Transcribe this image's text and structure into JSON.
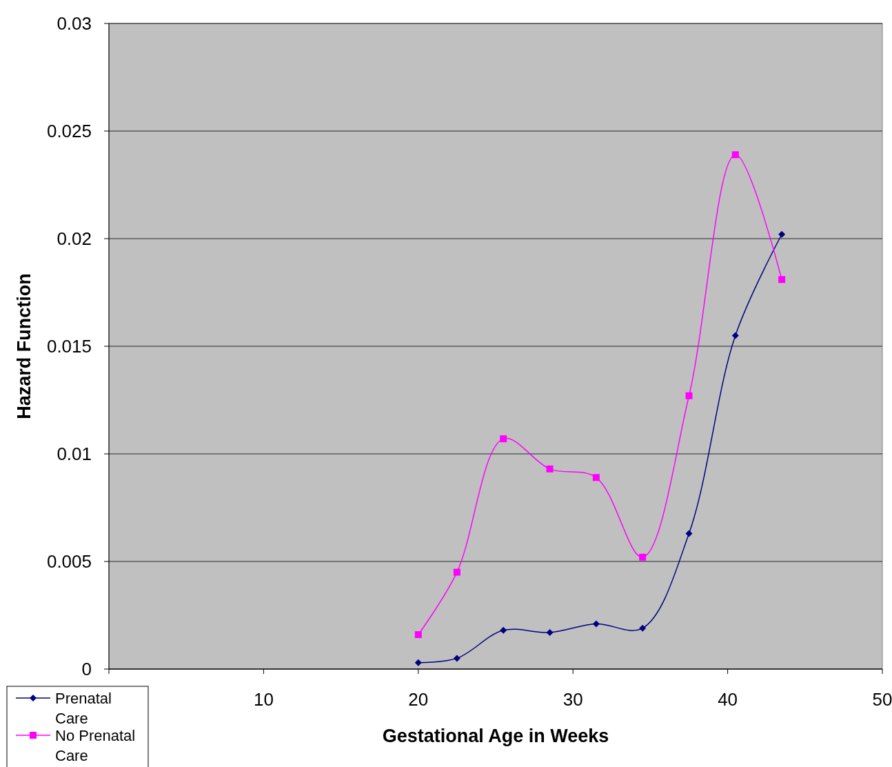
{
  "chart_data": {
    "type": "line",
    "xlabel": "Gestational Age in Weeks",
    "ylabel": "Hazard Function",
    "xlim": [
      0,
      50
    ],
    "xticks": [
      {
        "value": 0,
        "label": null
      },
      10,
      20,
      30,
      40,
      50
    ],
    "ylim": [
      0,
      0.03
    ],
    "yticks": [
      0,
      0.005,
      0.01,
      0.015,
      0.02,
      0.025,
      0.03
    ],
    "grid": "y",
    "legend": "bottom left",
    "line_style": "solid",
    "series": [
      {
        "name": "Prenatal Care",
        "color": "#000080",
        "marker": "diamond",
        "x": [
          20,
          22.5,
          25.5,
          28.5,
          31.5,
          34.5,
          37.5,
          40.5,
          43.5
        ],
        "values": [
          0.0003,
          0.0005,
          0.0018,
          0.0017,
          0.0021,
          0.0019,
          0.0063,
          0.0155,
          0.0202
        ]
      },
      {
        "name": "No Prenatal Care",
        "color": "#ff00ff",
        "marker": "square",
        "x": [
          20,
          22.5,
          25.5,
          28.5,
          31.5,
          34.5,
          37.5,
          40.5,
          43.5
        ],
        "values": [
          0.0016,
          0.0045,
          0.0107,
          0.0093,
          0.0089,
          0.0052,
          0.0127,
          0.0239,
          0.0181
        ]
      }
    ]
  }
}
